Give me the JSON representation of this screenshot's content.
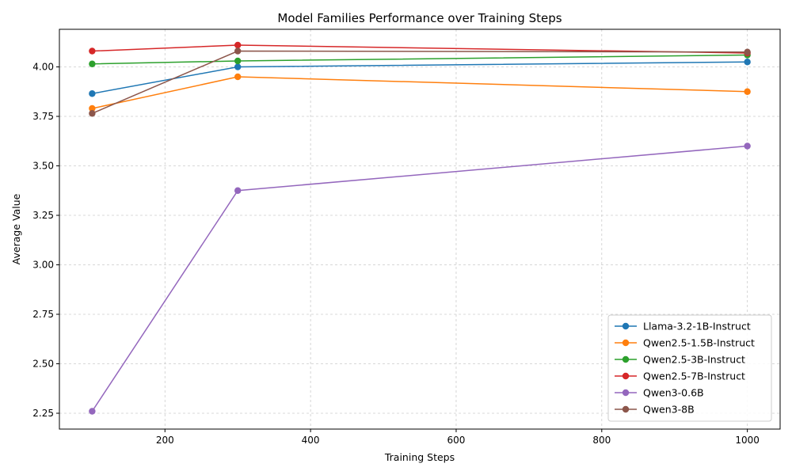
{
  "chart_data": {
    "type": "line",
    "title": "Model Families Performance over Training Steps",
    "xlabel": "Training Steps",
    "ylabel": "Average Value",
    "xlim": [
      55,
      1045
    ],
    "ylim": [
      2.17,
      4.19
    ],
    "xticks": [
      200,
      400,
      600,
      800,
      1000
    ],
    "xtick_labels": [
      "200",
      "400",
      "600",
      "800",
      "1000"
    ],
    "yticks": [
      2.25,
      2.5,
      2.75,
      3.0,
      3.25,
      3.5,
      3.75,
      4.0
    ],
    "ytick_labels": [
      "2.25",
      "2.50",
      "2.75",
      "3.00",
      "3.25",
      "3.50",
      "3.75",
      "4.00"
    ],
    "grid": true,
    "legend_position": "lower-right",
    "x": [
      100,
      300,
      1000
    ],
    "series": [
      {
        "name": "Llama-3.2-1B-Instruct",
        "color": "#1f77b4",
        "values": [
          3.865,
          4.0,
          4.025
        ]
      },
      {
        "name": "Qwen2.5-1.5B-Instruct",
        "color": "#ff7f0e",
        "values": [
          3.79,
          3.95,
          3.875
        ]
      },
      {
        "name": "Qwen2.5-3B-Instruct",
        "color": "#2ca02c",
        "values": [
          4.015,
          4.03,
          4.06
        ]
      },
      {
        "name": "Qwen2.5-7B-Instruct",
        "color": "#d62728",
        "values": [
          4.08,
          4.11,
          4.07
        ]
      },
      {
        "name": "Qwen3-0.6B",
        "color": "#9467bd",
        "values": [
          2.26,
          3.375,
          3.6
        ]
      },
      {
        "name": "Qwen3-8B",
        "color": "#8c564b",
        "values": [
          3.765,
          4.08,
          4.075
        ]
      }
    ]
  }
}
